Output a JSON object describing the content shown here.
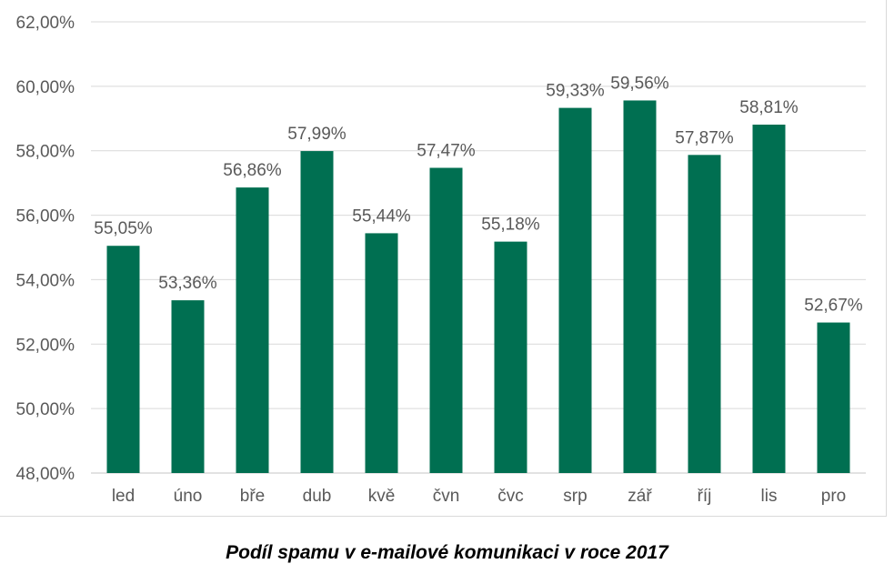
{
  "chart_data": {
    "type": "bar",
    "categories": [
      "led",
      "úno",
      "bře",
      "dub",
      "kvě",
      "čvn",
      "čvc",
      "srp",
      "zář",
      "říj",
      "lis",
      "pro"
    ],
    "values": [
      55.05,
      53.36,
      56.86,
      57.99,
      55.44,
      57.47,
      55.18,
      59.33,
      59.56,
      57.87,
      58.81,
      52.67
    ],
    "value_labels": [
      "55,05%",
      "53,36%",
      "56,86%",
      "57,99%",
      "55,44%",
      "57,47%",
      "55,18%",
      "59,33%",
      "59,56%",
      "57,87%",
      "58,81%",
      "52,67%"
    ],
    "y_ticks": [
      48,
      50,
      52,
      54,
      56,
      58,
      60,
      62
    ],
    "y_tick_labels": [
      "48,00%",
      "50,00%",
      "52,00%",
      "54,00%",
      "56,00%",
      "58,00%",
      "60,00%",
      "62,00%"
    ],
    "ylim": [
      48,
      62
    ],
    "grid": true,
    "legend": "none",
    "title": "Podíl spamu v e-mailové komunikaci v roce 2017",
    "bar_color": "#006f51",
    "grid_color": "#d9d9d9"
  }
}
